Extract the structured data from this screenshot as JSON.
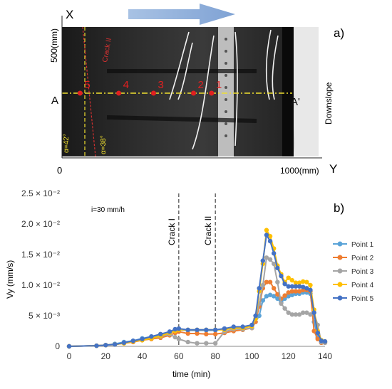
{
  "panel_a": {
    "label": "a)",
    "x_axis_letter": "X",
    "y_axis_letter": "Y",
    "x_top_label": "500(mm)",
    "origin_label": "0",
    "y_right_label": "1000(mm)",
    "downslope_label": "Downslope",
    "section_left": "A",
    "section_right": "A'",
    "crack_label": "Crack II",
    "angle_left": "α=42°",
    "angle_right": "α=38°",
    "points": [
      {
        "label": "5",
        "x_mm": 70
      },
      {
        "label": "4",
        "x_mm": 220
      },
      {
        "label": "3",
        "x_mm": 355
      },
      {
        "label": "2",
        "x_mm": 510
      },
      {
        "label": "1",
        "x_mm": 580
      }
    ],
    "section_y_mm": 210,
    "colors": {
      "points": "#e02020",
      "section_line": "#f0e030",
      "crack_line": "#d03030",
      "arrow": "#8fafd8"
    }
  },
  "chart_data": {
    "type": "line",
    "panel_label": "b)",
    "annotation": "i=30 mm/h",
    "xlabel": "time (min)",
    "ylabel": "Vy (mm/s)",
    "xlim": [
      0,
      140
    ],
    "ylim": [
      0,
      0.025
    ],
    "x_ticks": [
      0,
      20,
      40,
      60,
      80,
      100,
      120,
      140
    ],
    "y_ticks": [
      {
        "value": 0,
        "label": "0"
      },
      {
        "value": 0.005,
        "label": "5 × 10⁻³"
      },
      {
        "value": 0.01,
        "label": "1.0 × 10⁻²"
      },
      {
        "value": 0.015,
        "label": "1.5 × 10⁻²"
      },
      {
        "value": 0.02,
        "label": "2.0 × 10⁻²"
      },
      {
        "value": 0.025,
        "label": "2.5 × 10⁻²"
      }
    ],
    "markers": [
      {
        "x": 60,
        "label": "Crack I"
      },
      {
        "x": 80,
        "label": "Crack II"
      }
    ],
    "grid": false,
    "legend_position": "right",
    "x": [
      0,
      15,
      20,
      25,
      30,
      35,
      40,
      45,
      50,
      55,
      58,
      60,
      65,
      70,
      75,
      80,
      85,
      90,
      95,
      100,
      102,
      104,
      106,
      108,
      110,
      112,
      114,
      116,
      118,
      120,
      122,
      124,
      126,
      128,
      130,
      132,
      134,
      136,
      138,
      140
    ],
    "series": [
      {
        "name": "Point 1",
        "color": "#5aa3d8",
        "values": [
          0,
          0.0001,
          0.0002,
          0.0004,
          0.0007,
          0.0009,
          0.0013,
          0.0016,
          0.0018,
          0.0022,
          0.0026,
          0.0027,
          0.0026,
          0.0026,
          0.0026,
          0.0026,
          0.0029,
          0.0031,
          0.0031,
          0.0034,
          0.004,
          0.005,
          0.0075,
          0.0082,
          0.0084,
          0.0082,
          0.0078,
          0.0072,
          0.0078,
          0.0082,
          0.0084,
          0.0086,
          0.0086,
          0.0088,
          0.0088,
          0.0086,
          0.004,
          0.0015,
          0.0006,
          0.0007
        ]
      },
      {
        "name": "Point 2",
        "color": "#ee7d31",
        "values": [
          0,
          0.0001,
          0.0002,
          0.0003,
          0.0005,
          0.0007,
          0.001,
          0.0012,
          0.0014,
          0.0018,
          0.0022,
          0.0024,
          0.0021,
          0.0021,
          0.002,
          0.002,
          0.0022,
          0.0025,
          0.0027,
          0.003,
          0.004,
          0.0065,
          0.0095,
          0.0105,
          0.0105,
          0.0095,
          0.0085,
          0.0078,
          0.0083,
          0.0088,
          0.009,
          0.009,
          0.009,
          0.0092,
          0.0092,
          0.009,
          0.0025,
          0.0012,
          0.0006,
          0.0006
        ]
      },
      {
        "name": "Point 3",
        "color": "#a5a5a5",
        "values": [
          0,
          0.0001,
          0.0002,
          0.0003,
          0.0005,
          0.0008,
          0.0011,
          0.0014,
          0.0016,
          0.002,
          0.0015,
          0.0012,
          0.0007,
          0.0005,
          0.0005,
          0.0005,
          0.0024,
          0.0028,
          0.0028,
          0.003,
          0.0045,
          0.007,
          0.01,
          0.0145,
          0.0142,
          0.0135,
          0.0105,
          0.007,
          0.0062,
          0.0055,
          0.0052,
          0.0052,
          0.0052,
          0.0055,
          0.0055,
          0.0052,
          0.0055,
          0.0035,
          0.0007,
          0.0006
        ]
      },
      {
        "name": "Point 4",
        "color": "#ffc000",
        "values": [
          0,
          0.0001,
          0.0002,
          0.0003,
          0.0005,
          0.0008,
          0.001,
          0.0013,
          0.0017,
          0.0022,
          0.0025,
          0.0027,
          0.0027,
          0.0027,
          0.0027,
          0.0027,
          0.0027,
          0.003,
          0.003,
          0.0033,
          0.0045,
          0.009,
          0.0135,
          0.019,
          0.018,
          0.016,
          0.0132,
          0.0118,
          0.0105,
          0.0112,
          0.0108,
          0.0104,
          0.0104,
          0.0106,
          0.0105,
          0.01,
          0.006,
          0.0025,
          0.001,
          0.0008
        ]
      },
      {
        "name": "Point 5",
        "color": "#4472c4",
        "values": [
          0,
          0.0001,
          0.0002,
          0.0003,
          0.0006,
          0.0009,
          0.0012,
          0.0016,
          0.002,
          0.0024,
          0.0028,
          0.0029,
          0.0027,
          0.0027,
          0.0027,
          0.0027,
          0.0029,
          0.0032,
          0.0032,
          0.0035,
          0.005,
          0.0095,
          0.014,
          0.0182,
          0.0172,
          0.0152,
          0.0128,
          0.0115,
          0.0102,
          0.0098,
          0.0098,
          0.0098,
          0.0098,
          0.0097,
          0.0095,
          0.0092,
          0.0055,
          0.0022,
          0.0009,
          0.0008
        ]
      }
    ]
  }
}
